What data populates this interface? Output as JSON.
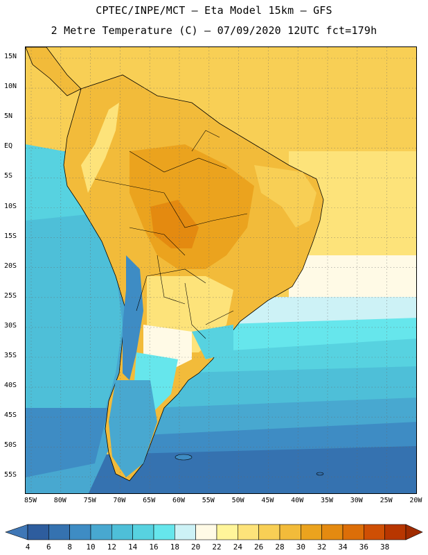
{
  "header": {
    "line1": "CPTEC/INPE/MCT –  Eta Model 15km – GFS",
    "line2": "2 Metre Temperature (C) – 07/09/2020 12UTC fct=179h"
  },
  "map": {
    "lat_labels": [
      "15N",
      "10N",
      "5N",
      "EQ",
      "5S",
      "10S",
      "15S",
      "20S",
      "25S",
      "30S",
      "35S",
      "40S",
      "45S",
      "50S",
      "55S"
    ],
    "lon_labels": [
      "85W",
      "80W",
      "75W",
      "70W",
      "65W",
      "60W",
      "55W",
      "50W",
      "45W",
      "40W",
      "35W",
      "30W",
      "25W",
      "20W"
    ],
    "colors": {
      "c4": "#2e5d9e",
      "c6": "#3572b0",
      "c8": "#3e8cc4",
      "c10": "#48a8d0",
      "c12": "#4ebfd8",
      "c14": "#57d2e0",
      "c16": "#66e6ec",
      "c18": "#cdf2f6",
      "c20": "#fffae6",
      "c22": "#fff59a",
      "c24": "#fde37a",
      "c26": "#f8cf55",
      "c28": "#f2bb3a",
      "c30": "#eba31e",
      "c32": "#e48a10",
      "c34": "#dc6e08",
      "c36": "#cf4f04",
      "c38": "#b83600"
    }
  },
  "colorbar": {
    "labels": [
      "4",
      "6",
      "8",
      "10",
      "12",
      "14",
      "16",
      "18",
      "20",
      "22",
      "24",
      "26",
      "28",
      "30",
      "32",
      "34",
      "36",
      "38"
    ],
    "colors": [
      "#3f77b6",
      "#2e5d9e",
      "#3572b0",
      "#3e8cc4",
      "#48a8d0",
      "#4ebfd8",
      "#57d2e0",
      "#66e6ec",
      "#cdf2f6",
      "#fffae6",
      "#fff59a",
      "#fde37a",
      "#f8cf55",
      "#f2bb3a",
      "#eba31e",
      "#e48a10",
      "#dc6e08",
      "#cf4f04",
      "#b83600",
      "#a02b00"
    ]
  }
}
